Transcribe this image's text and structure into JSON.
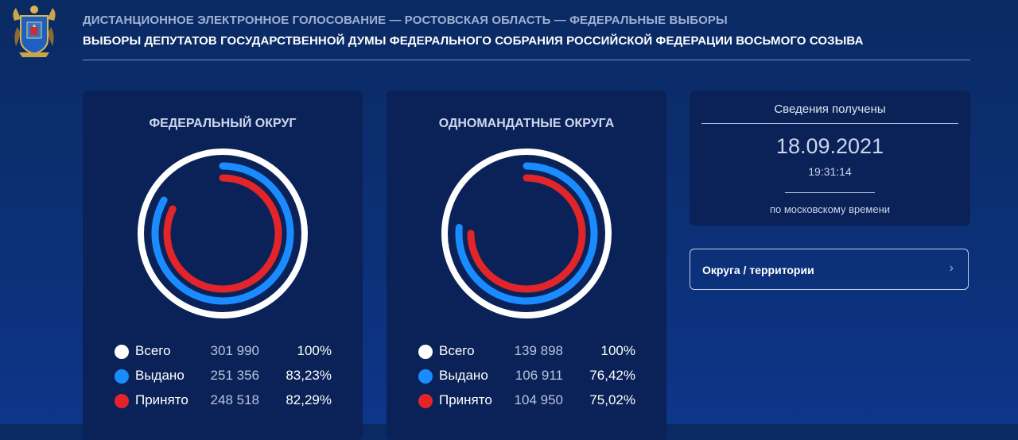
{
  "header": {
    "subtitle": "ДИСТАНЦИОННОЕ ЭЛЕКТРОННОЕ ГОЛОСОВАНИЕ — РОСТОВСКАЯ ОБЛАСТЬ — ФЕДЕРАЛЬНЫЕ ВЫБОРЫ",
    "title": "ВЫБОРЫ ДЕПУТАТОВ ГОСУДАРСТВЕННОЙ ДУМЫ ФЕДЕРАЛЬНОГО СОБРАНИЯ РОССИЙСКОЙ ФЕДЕРАЦИИ ВОСЬМОГО СОЗЫВА"
  },
  "colors": {
    "total": "#ffffff",
    "issued": "#1a8cff",
    "accepted": "#e3252a"
  },
  "panels": [
    {
      "title": "ФЕДЕРАЛЬНЫЙ ОКРУГ",
      "rows": [
        {
          "key": "total",
          "label": "Всего",
          "value": "301 990",
          "percent": "100%",
          "fraction": 1.0
        },
        {
          "key": "issued",
          "label": "Выдано",
          "value": "251 356",
          "percent": "83,23%",
          "fraction": 0.8323
        },
        {
          "key": "accepted",
          "label": "Принято",
          "value": "248 518",
          "percent": "82,29%",
          "fraction": 0.8229
        }
      ]
    },
    {
      "title": "ОДНОМАНДАТНЫЕ ОКРУГА",
      "rows": [
        {
          "key": "total",
          "label": "Всего",
          "value": "139 898",
          "percent": "100%",
          "fraction": 1.0
        },
        {
          "key": "issued",
          "label": "Выдано",
          "value": "106 911",
          "percent": "76,42%",
          "fraction": 0.7642
        },
        {
          "key": "accepted",
          "label": "Принято",
          "value": "104 950",
          "percent": "75,02%",
          "fraction": 0.7502
        }
      ]
    }
  ],
  "timestamp": {
    "label": "Сведения получены",
    "date": "18.09.2021",
    "time": "19:31:14",
    "note": "по московскому времени"
  },
  "nav": {
    "label": "Округа / территории",
    "icon": "chevron-right-icon"
  }
}
